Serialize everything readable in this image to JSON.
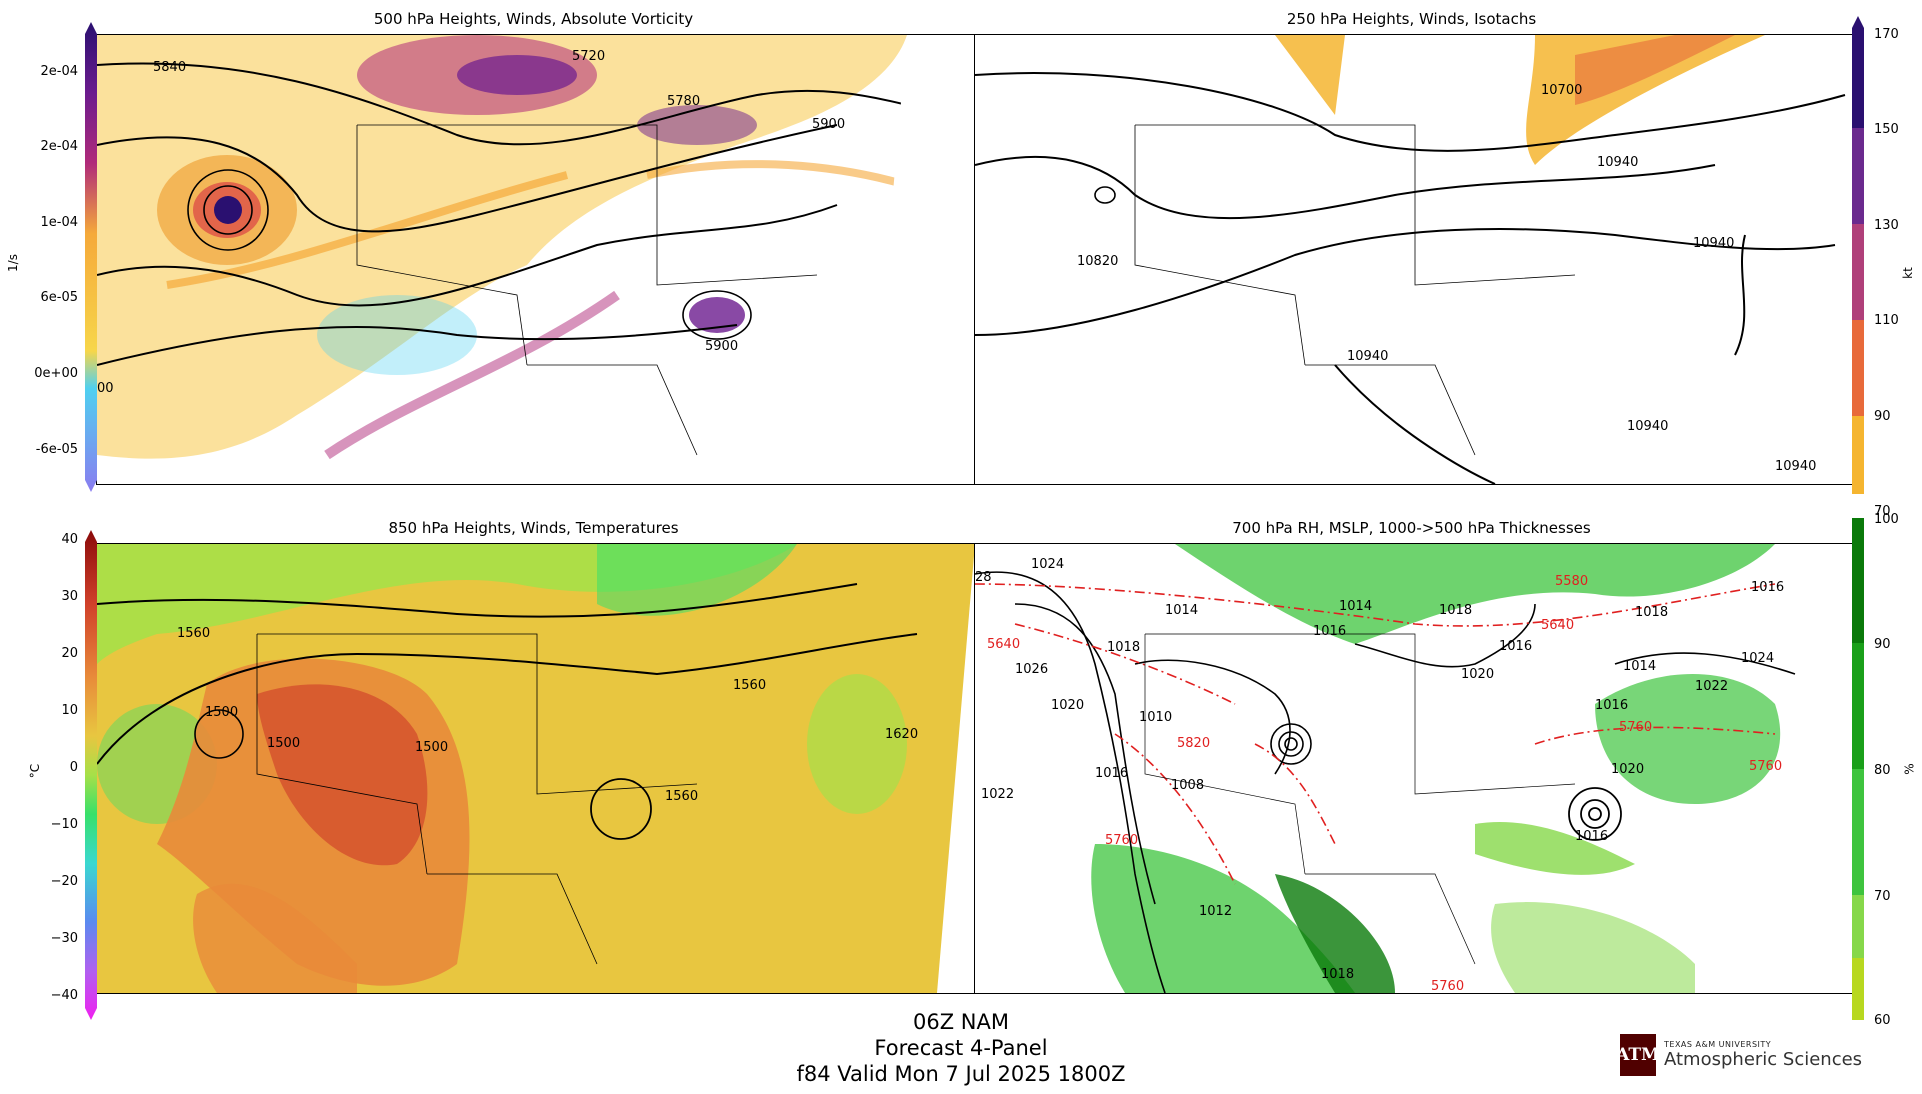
{
  "panels": {
    "p500": {
      "title": "500 hPa Heights, Winds, Absolute Vorticity",
      "contour_labels": [
        "5840",
        "5720",
        "5780",
        "5900",
        "5900",
        "00"
      ],
      "colorbar": {
        "unit": "1/s",
        "ticks": [
          "2e-04",
          "2e-04",
          "1e-04",
          "6e-05",
          "0e+00",
          "-6e-05"
        ],
        "colors": [
          "#2a1070",
          "#6b1b8e",
          "#b02a7a",
          "#e2654a",
          "#f5a93a",
          "#f7d64a",
          "#4fd0f0",
          "#6fa0f0",
          "#8a7cf0"
        ]
      }
    },
    "p250": {
      "title": "250 hPa Heights, Winds, Isotachs",
      "contour_labels": [
        "10700",
        "10940",
        "10820",
        "10940",
        "10940",
        "10940",
        "10940"
      ],
      "colorbar": {
        "unit": "kt",
        "ticks": [
          "170",
          "150",
          "130",
          "110",
          "90",
          "70"
        ],
        "colors": [
          "#2a1070",
          "#6b2a8e",
          "#b0407a",
          "#e86a3a",
          "#f5b530"
        ]
      }
    },
    "p850": {
      "title": "850 hPa Heights, Winds, Temperatures",
      "contour_labels": [
        "1560",
        "1500",
        "1500",
        "1500",
        "1560",
        "1620",
        "1560"
      ],
      "colorbar": {
        "unit": "°C",
        "ticks": [
          "40",
          "30",
          "20",
          "10",
          "0",
          "−10",
          "−20",
          "−30",
          "−40"
        ],
        "colors": [
          "#8a0a0a",
          "#d0402a",
          "#e88a3a",
          "#e8c640",
          "#a6e048",
          "#38e06a",
          "#3ad8d0",
          "#5a8af0",
          "#b060f0",
          "#f020f0"
        ]
      }
    },
    "p700": {
      "title": "700 hPa RH, MSLP, 1000->500 hPa Thicknesses",
      "black_labels": [
        "28",
        "1024",
        "1014",
        "1018",
        "1026",
        "1020",
        "1010",
        "1016",
        "1022",
        "1008",
        "1012",
        "1016",
        "1014",
        "1016",
        "1018",
        "1020",
        "1018",
        "1016",
        "1022",
        "1024",
        "1014",
        "1016",
        "1020",
        "1016",
        "1018"
      ],
      "red_labels": [
        "5640",
        "5820",
        "5760",
        "5580",
        "5640",
        "5760",
        "5760",
        "5760"
      ],
      "colorbar": {
        "unit": "%",
        "ticks": [
          "100",
          "90",
          "80",
          "70",
          "60"
        ],
        "colors": [
          "#0a7a0a",
          "#1aa01a",
          "#3ec43e",
          "#86d84a",
          "#b8d820"
        ]
      }
    }
  },
  "footer": {
    "line1": "06Z NAM",
    "line2": "Forecast 4-Panel",
    "line3": "f84 Valid Mon 7 Jul 2025 1800Z"
  },
  "logo": {
    "mark": "ATM",
    "line1": "TEXAS A&M UNIVERSITY",
    "line2": "Atmospheric Sciences"
  }
}
